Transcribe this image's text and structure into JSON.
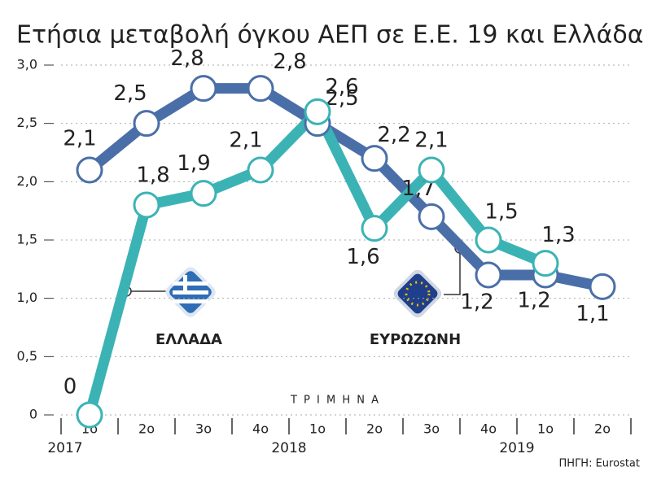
{
  "chart_data": {
    "type": "line",
    "title": "Ετήσια μεταβολή όγκου ΑΕΠ σε Ε.Ε. 19 και Ελλάδα (%)",
    "x_label": "Τ Ρ Ι Μ Η Ν Α",
    "source": "ΠΗΓΗ: Eurostat",
    "categories": [
      "1ο",
      "2ο",
      "3ο",
      "4ο",
      "1ο",
      "2ο",
      "3ο",
      "4ο",
      "1ο",
      "2ο"
    ],
    "years": [
      "2017",
      "2018",
      "2019"
    ],
    "ylim": [
      0,
      3.0
    ],
    "yticks": [
      0,
      {
        "value": 0.5,
        "label": "0,5"
      },
      {
        "value": 1.0,
        "label": "1,0"
      },
      {
        "value": 1.5,
        "label": "1,5"
      },
      {
        "value": 2.0,
        "label": "2,0"
      },
      {
        "value": 2.5,
        "label": "2,5"
      },
      {
        "value": 3.0,
        "label": "3,0"
      }
    ],
    "grid": true,
    "series": [
      {
        "name": "ΕΥΡΩΖΩΝΗ",
        "color": "#4a6fa8",
        "values": [
          2.1,
          2.5,
          2.8,
          2.8,
          2.5,
          2.2,
          1.7,
          1.2,
          1.2,
          1.1
        ],
        "value_labels": [
          "2,1",
          "2,5",
          "2,8",
          "2,8",
          "2,5",
          "2,2",
          "1,7",
          "1,2",
          "1,2",
          "1,1"
        ]
      },
      {
        "name": "ΕΛΛΑΔΑ",
        "color": "#3bb3b5",
        "values": [
          0,
          1.8,
          1.9,
          2.1,
          2.6,
          1.6,
          2.1,
          1.5,
          1.3,
          null
        ],
        "value_labels": [
          "0",
          "1,8",
          "1,9",
          "2,1",
          "2,6",
          "1,6",
          "2,1",
          "1,5",
          "1,3",
          null
        ]
      }
    ]
  }
}
